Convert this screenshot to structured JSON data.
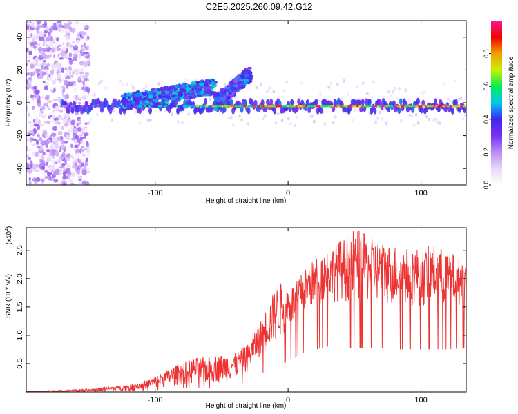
{
  "figure_title": "C2E5.2025.260.09.42.G12",
  "chart_data": [
    {
      "type": "heatmap",
      "panel": "spectrogram",
      "xlabel": "Height of straight line (km)",
      "ylabel": "Frequency (Hz)",
      "xlim": [
        -197,
        134
      ],
      "ylim": [
        -50,
        50
      ],
      "x_ticks": [
        -100,
        0,
        100
      ],
      "x_tick_labels": [
        "-100",
        "0",
        "100"
      ],
      "y_ticks": [
        -40,
        -20,
        0,
        20,
        40
      ],
      "y_tick_labels": [
        "-40",
        "-20",
        "0",
        "20",
        "40"
      ],
      "colorbar": {
        "label": "Normalized spectral amplitude",
        "range": [
          0,
          1
        ],
        "ticks": [
          0.0,
          0.2,
          0.4,
          0.6,
          0.8
        ],
        "tick_labels": [
          "0.0",
          "0.2",
          "0.4",
          "0.6",
          "0.8"
        ],
        "colors": [
          "#ffffff",
          "#e9d6fa",
          "#b98cf4",
          "#7a30f0",
          "#3c28f0",
          "#00c8f0",
          "#00f050",
          "#c8f000",
          "#f0a000",
          "#f00000",
          "#ff1493"
        ]
      },
      "features": [
        {
          "name": "noise-band",
          "x_range": [
            -197,
            -150
          ],
          "freq_range": [
            -50,
            50
          ],
          "amplitude": 0.1
        },
        {
          "name": "carrier",
          "x_range": [
            -170,
            134
          ],
          "freq": -2,
          "amplitude_range": [
            0.3,
            1.0
          ]
        },
        {
          "name": "arc-1",
          "x_start": -125,
          "x_end": -55,
          "freq_start": 0,
          "freq_end": 10,
          "amplitude": 0.35
        },
        {
          "name": "arc-2",
          "x_start": -55,
          "x_end": -28,
          "freq_start": 0,
          "freq_end": 18,
          "amplitude": 0.3
        }
      ]
    },
    {
      "type": "line",
      "panel": "snr",
      "xlabel": "Height of straight line (km)",
      "ylabel": "SNR (10 * v/v)",
      "scale_label": "(x10",
      "scale_exponent": "4",
      "xlim": [
        -197,
        134
      ],
      "ylim": [
        0,
        2.9
      ],
      "x_ticks": [
        -100,
        0,
        100
      ],
      "x_tick_labels": [
        "-100",
        "0",
        "100"
      ],
      "y_ticks": [
        0.5,
        1.0,
        1.5,
        2.0,
        2.5
      ],
      "y_tick_labels": [
        "0.5",
        "1.0",
        "1.5",
        "2.0",
        "2.5"
      ],
      "series": [
        {
          "name": "SNR",
          "color": "#ee3333",
          "x": [
            -197,
            -175,
            -150,
            -125,
            -110,
            -100,
            -90,
            -80,
            -70,
            -60,
            -50,
            -40,
            -30,
            -25,
            -20,
            -15,
            -10,
            -5,
            0,
            5,
            10,
            20,
            30,
            40,
            50,
            60,
            70,
            80,
            90,
            100,
            110,
            120,
            134
          ],
          "envelope_low": [
            0.0,
            0.0,
            0.01,
            0.02,
            0.04,
            0.06,
            0.09,
            0.12,
            0.13,
            0.14,
            0.17,
            0.2,
            0.35,
            0.5,
            0.65,
            0.75,
            0.85,
            0.95,
            1.1,
            1.2,
            1.35,
            1.5,
            1.6,
            1.6,
            1.55,
            1.55,
            1.55,
            1.5,
            1.5,
            1.5,
            1.5,
            1.5,
            1.55
          ],
          "envelope_high": [
            0.01,
            0.03,
            0.05,
            0.12,
            0.18,
            0.28,
            0.4,
            0.52,
            0.6,
            0.62,
            0.66,
            0.68,
            0.85,
            1.05,
            1.3,
            1.55,
            1.8,
            1.95,
            1.9,
            1.9,
            2.1,
            2.35,
            2.55,
            2.7,
            2.9,
            2.75,
            2.65,
            2.6,
            2.55,
            2.55,
            2.6,
            2.5,
            2.3
          ]
        }
      ]
    }
  ]
}
